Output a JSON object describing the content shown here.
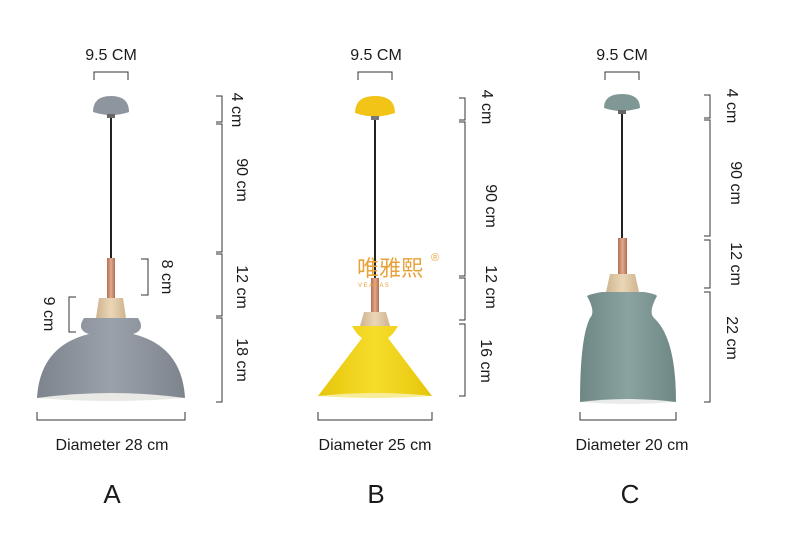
{
  "watermark": {
    "text": "唯雅熙",
    "registered_mark": "®",
    "subtext": "V E A Y A S",
    "color": "#e8a23a"
  },
  "lamps": [
    {
      "letter": "A",
      "canopy_width": "9.5 CM",
      "canopy_height": "4 cm",
      "cord_length": "90 cm",
      "neck_length": "12 cm",
      "shade_height": "18 cm",
      "neck_inner": "8 cm",
      "top_inner": "9 cm",
      "diameter": "Diameter 28 cm",
      "color": "#8f959e"
    },
    {
      "letter": "B",
      "canopy_width": "9.5 CM",
      "canopy_height": "4 cm",
      "cord_length": "90 cm",
      "neck_length": "12 cm",
      "shade_height": "16 cm",
      "diameter": "Diameter 25 cm",
      "color": "#f2d51a"
    },
    {
      "letter": "C",
      "canopy_width": "9.5 CM",
      "canopy_height": "4 cm",
      "cord_length": "90 cm",
      "neck_length": "12 cm",
      "shade_height": "22 cm",
      "diameter": "Diameter 20 cm",
      "color": "#7f9896"
    }
  ],
  "colors": {
    "wood": "#dcc39f",
    "copper": "#c9896a",
    "cord": "#222222",
    "dimension_line": "#333333"
  }
}
